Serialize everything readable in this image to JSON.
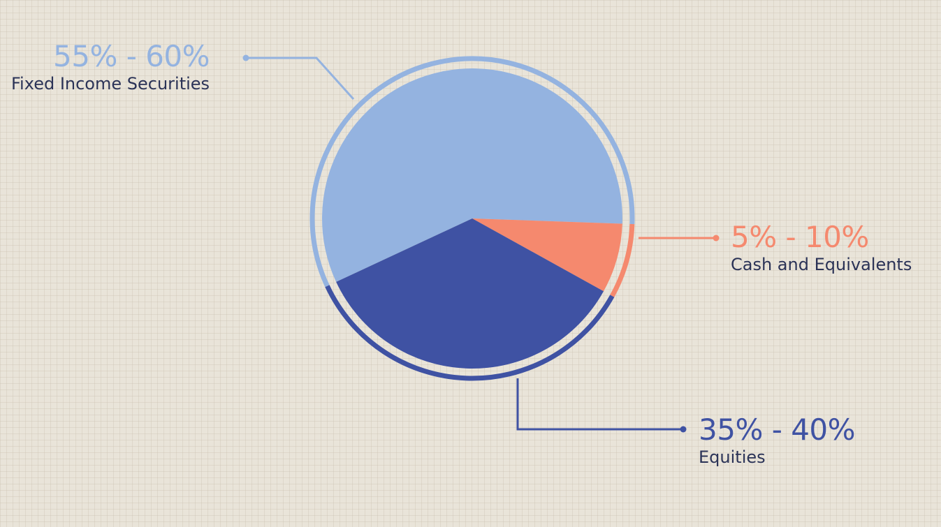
{
  "colors": {
    "background": "#e9e4d9",
    "fixed_income": "#94b3e0",
    "cash": "#f5896e",
    "equities": "#3f52a3",
    "label_text": "#2b3357"
  },
  "chart_data": {
    "type": "pie",
    "title": "",
    "categories": [
      "Fixed Income Securities",
      "Cash and Equivalents",
      "Equities"
    ],
    "values": [
      57.5,
      7.5,
      35
    ],
    "range_labels": [
      "55% - 60%",
      "5% - 10%",
      "35% - 40%"
    ],
    "annotations": [
      {
        "range": "55% - 60%",
        "name": "Fixed Income Securities"
      },
      {
        "range": "5% - 10%",
        "name": "Cash and Equivalents"
      },
      {
        "range": "35% - 40%",
        "name": "Equities"
      }
    ],
    "legend": "none"
  }
}
